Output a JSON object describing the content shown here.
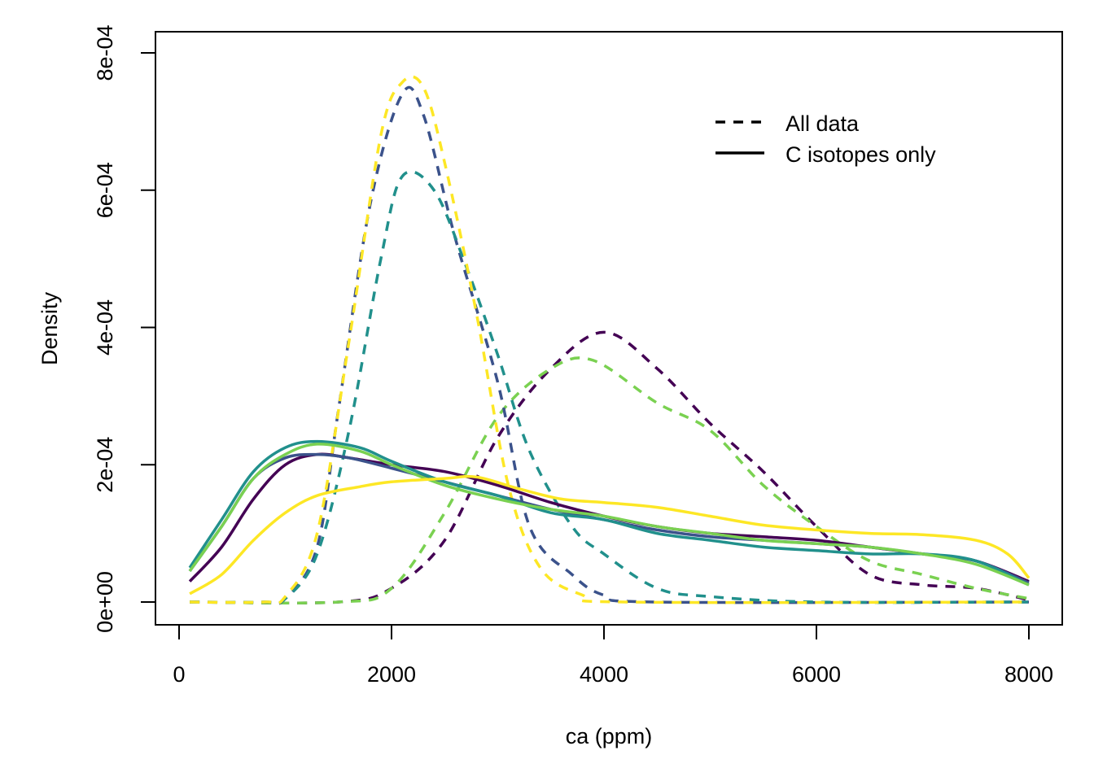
{
  "chart_data": {
    "type": "line",
    "title": "",
    "xlabel": "ca (ppm)",
    "ylabel": "Density",
    "xlim": [
      0,
      8000
    ],
    "ylim": [
      0,
      0.0008
    ],
    "x_ticks": [
      0,
      2000,
      4000,
      6000,
      8000
    ],
    "x_tick_labels": [
      "0",
      "2000",
      "4000",
      "6000",
      "8000"
    ],
    "y_ticks": [
      0,
      0.0002,
      0.0004,
      0.0006,
      0.0008
    ],
    "y_tick_labels": [
      "0e+00",
      "2e-04",
      "4e-04",
      "6e-04",
      "8e-04"
    ],
    "grid": false,
    "legend": {
      "position": "top-right",
      "entries": [
        {
          "label": "All data",
          "style": "dashed"
        },
        {
          "label": "C isotopes only",
          "style": "solid"
        }
      ]
    },
    "series": [
      {
        "color": "#440154",
        "style": "dashed",
        "points": [
          [
            100,
            0
          ],
          [
            1500,
            0
          ],
          [
            2000,
            2e-05
          ],
          [
            2500,
            9e-05
          ],
          [
            3000,
            0.00024
          ],
          [
            3500,
            0.00034
          ],
          [
            4000,
            0.000393
          ],
          [
            4500,
            0.00034
          ],
          [
            5000,
            0.00026
          ],
          [
            5500,
            0.00019
          ],
          [
            6000,
            0.00011
          ],
          [
            6500,
            4e-05
          ],
          [
            7000,
            2.5e-05
          ],
          [
            7500,
            2e-05
          ],
          [
            8000,
            3e-06
          ]
        ]
      },
      {
        "color": "#7AD151",
        "style": "dashed",
        "points": [
          [
            100,
            0
          ],
          [
            1500,
            0
          ],
          [
            2000,
            2e-05
          ],
          [
            2500,
            0.00013
          ],
          [
            3000,
            0.00027
          ],
          [
            3500,
            0.00034
          ],
          [
            3900,
            0.000352
          ],
          [
            4500,
            0.00029
          ],
          [
            5000,
            0.00025
          ],
          [
            5500,
            0.00017
          ],
          [
            6000,
            0.00011
          ],
          [
            6500,
            6e-05
          ],
          [
            7000,
            4e-05
          ],
          [
            7500,
            2e-05
          ],
          [
            8000,
            5e-06
          ]
        ]
      },
      {
        "color": "#3B528B",
        "style": "dashed",
        "points": [
          [
            100,
            0
          ],
          [
            800,
            0
          ],
          [
            1000,
            5e-06
          ],
          [
            1300,
            8e-05
          ],
          [
            1500,
            0.00028
          ],
          [
            1800,
            0.00058
          ],
          [
            2100,
            0.00074
          ],
          [
            2300,
            0.00071
          ],
          [
            2600,
            0.00053
          ],
          [
            3000,
            0.00032
          ],
          [
            3300,
            0.00011
          ],
          [
            3700,
            4e-05
          ],
          [
            4000,
            1e-05
          ],
          [
            4500,
            0
          ],
          [
            8000,
            0
          ]
        ]
      },
      {
        "color": "#21908C",
        "style": "dashed",
        "points": [
          [
            100,
            0
          ],
          [
            800,
            0
          ],
          [
            1000,
            5e-06
          ],
          [
            1300,
            7e-05
          ],
          [
            1600,
            0.00025
          ],
          [
            1900,
            0.0005
          ],
          [
            2100,
            0.00062
          ],
          [
            2400,
            0.0006
          ],
          [
            2700,
            0.00049
          ],
          [
            3000,
            0.00036
          ],
          [
            3300,
            0.00022
          ],
          [
            3700,
            0.00011
          ],
          [
            4000,
            7e-05
          ],
          [
            4500,
            2e-05
          ],
          [
            5000,
            8e-06
          ],
          [
            6000,
            0
          ],
          [
            8000,
            0
          ]
        ]
      },
      {
        "color": "#FDE725",
        "style": "dashed",
        "points": [
          [
            100,
            0
          ],
          [
            800,
            0
          ],
          [
            1000,
            8e-06
          ],
          [
            1300,
            0.0001
          ],
          [
            1600,
            0.00038
          ],
          [
            1900,
            0.00068
          ],
          [
            2100,
            0.000757
          ],
          [
            2300,
            0.00075
          ],
          [
            2500,
            0.00064
          ],
          [
            2800,
            0.00042
          ],
          [
            3100,
            0.00017
          ],
          [
            3400,
            5e-05
          ],
          [
            3800,
            1e-05
          ],
          [
            4200,
            0
          ],
          [
            8000,
            0
          ]
        ]
      },
      {
        "color": "#440154",
        "style": "solid",
        "points": [
          [
            100,
            3e-05
          ],
          [
            400,
            8e-05
          ],
          [
            700,
            0.00015
          ],
          [
            1000,
            0.0002
          ],
          [
            1300,
            0.000215
          ],
          [
            1600,
            0.00021
          ],
          [
            2000,
            0.0002
          ],
          [
            2500,
            0.00019
          ],
          [
            3000,
            0.00017
          ],
          [
            3500,
            0.000145
          ],
          [
            4000,
            0.000125
          ],
          [
            4500,
            0.00011
          ],
          [
            5000,
            0.0001
          ],
          [
            5500,
            9.5e-05
          ],
          [
            6000,
            9e-05
          ],
          [
            6500,
            8e-05
          ],
          [
            7000,
            7e-05
          ],
          [
            7500,
            6e-05
          ],
          [
            8000,
            3e-05
          ]
        ]
      },
      {
        "color": "#3B528B",
        "style": "solid",
        "points": [
          [
            100,
            4.5e-05
          ],
          [
            400,
            0.00011
          ],
          [
            700,
            0.00018
          ],
          [
            1000,
            0.00021
          ],
          [
            1300,
            0.000215
          ],
          [
            1600,
            0.00021
          ],
          [
            2000,
            0.000195
          ],
          [
            2500,
            0.000175
          ],
          [
            3000,
            0.000155
          ],
          [
            3500,
            0.000135
          ],
          [
            4000,
            0.00012
          ],
          [
            4500,
            0.000105
          ],
          [
            5000,
            9.5e-05
          ],
          [
            5500,
            9e-05
          ],
          [
            6000,
            8.5e-05
          ],
          [
            6500,
            8e-05
          ],
          [
            7000,
            7e-05
          ],
          [
            7500,
            6e-05
          ],
          [
            8000,
            2.8e-05
          ]
        ]
      },
      {
        "color": "#21908C",
        "style": "solid",
        "points": [
          [
            100,
            5e-05
          ],
          [
            400,
            0.00012
          ],
          [
            700,
            0.00019
          ],
          [
            1000,
            0.000225
          ],
          [
            1300,
            0.000234
          ],
          [
            1700,
            0.000225
          ],
          [
            2000,
            0.000205
          ],
          [
            2500,
            0.000175
          ],
          [
            3000,
            0.000155
          ],
          [
            3500,
            0.00013
          ],
          [
            4000,
            0.00012
          ],
          [
            4500,
            0.0001
          ],
          [
            5000,
            9e-05
          ],
          [
            5500,
            8e-05
          ],
          [
            6000,
            7.5e-05
          ],
          [
            6500,
            7e-05
          ],
          [
            7000,
            7e-05
          ],
          [
            7500,
            6e-05
          ],
          [
            8000,
            2.5e-05
          ]
        ]
      },
      {
        "color": "#7AD151",
        "style": "solid",
        "points": [
          [
            100,
            4.5e-05
          ],
          [
            400,
            0.00011
          ],
          [
            700,
            0.00018
          ],
          [
            1000,
            0.000215
          ],
          [
            1300,
            0.00023
          ],
          [
            1700,
            0.00022
          ],
          [
            2000,
            0.0002
          ],
          [
            2500,
            0.00017
          ],
          [
            3000,
            0.00015
          ],
          [
            3500,
            0.000135
          ],
          [
            4000,
            0.000125
          ],
          [
            4500,
            0.00011
          ],
          [
            5000,
            0.0001
          ],
          [
            5500,
            9e-05
          ],
          [
            6000,
            8.5e-05
          ],
          [
            6500,
            8e-05
          ],
          [
            7000,
            7e-05
          ],
          [
            7500,
            5.5e-05
          ],
          [
            8000,
            2.5e-05
          ]
        ]
      },
      {
        "color": "#FDE725",
        "style": "solid",
        "points": [
          [
            100,
            1.2e-05
          ],
          [
            400,
            4e-05
          ],
          [
            700,
            9e-05
          ],
          [
            1000,
            0.00013
          ],
          [
            1300,
            0.000155
          ],
          [
            1700,
            0.000168
          ],
          [
            2000,
            0.000175
          ],
          [
            2500,
            0.00018
          ],
          [
            2800,
            0.000182
          ],
          [
            3200,
            0.000165
          ],
          [
            3600,
            0.00015
          ],
          [
            4000,
            0.000145
          ],
          [
            4500,
            0.000138
          ],
          [
            5000,
            0.000125
          ],
          [
            5500,
            0.000112
          ],
          [
            6000,
            0.000105
          ],
          [
            6500,
            0.0001
          ],
          [
            7000,
            9.8e-05
          ],
          [
            7500,
            9e-05
          ],
          [
            7800,
            7e-05
          ],
          [
            8000,
            3.5e-05
          ]
        ]
      }
    ]
  }
}
